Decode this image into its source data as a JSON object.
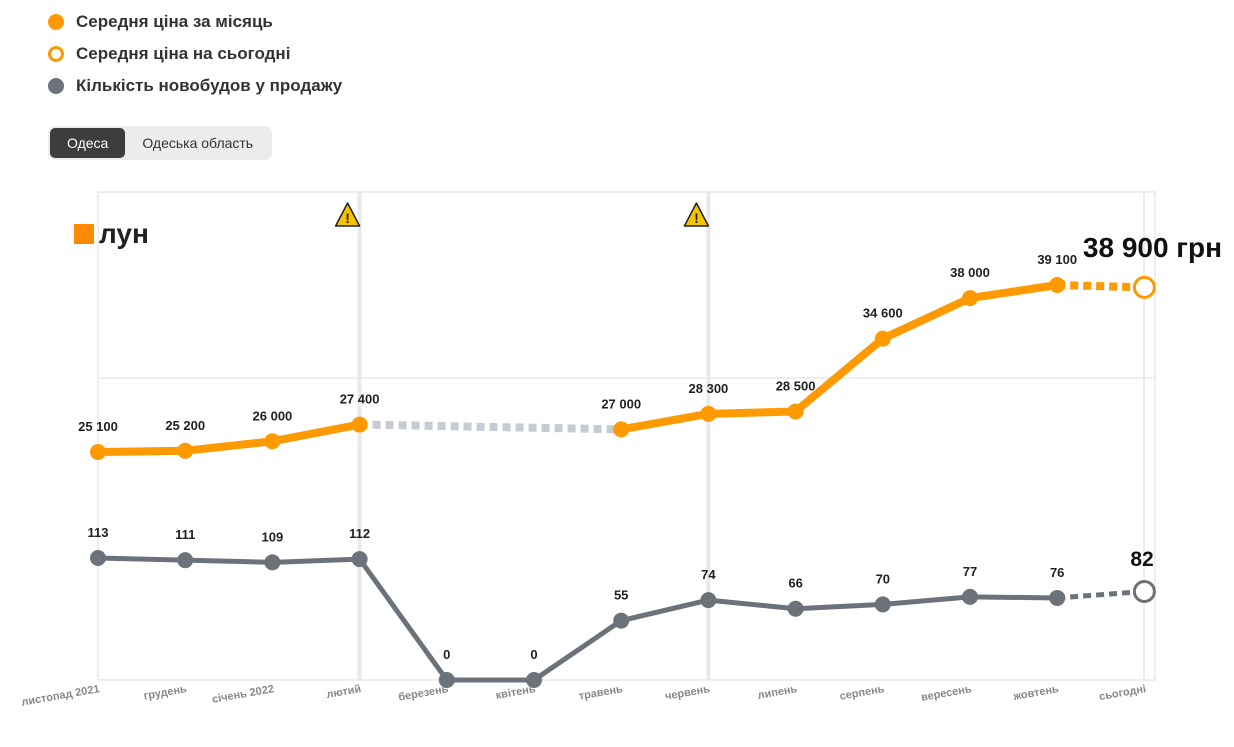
{
  "legend": {
    "items": [
      {
        "label": "Середня ціна за місяць",
        "style": "filled-orange"
      },
      {
        "label": "Середня ціна на сьогодні",
        "style": "hollow-orange"
      },
      {
        "label": "Кількість новобудов у продажу",
        "style": "filled-gray"
      }
    ]
  },
  "tabs": {
    "items": [
      {
        "label": "Одеса",
        "active": true
      },
      {
        "label": "Одеська область",
        "active": false
      }
    ]
  },
  "logo": {
    "text": "лун",
    "icon": "lun-logo-square-icon"
  },
  "colors": {
    "price": "#ff9900",
    "count": "#6b727a",
    "gap": "#c5ccd3",
    "warning": "#f5c400"
  },
  "chart_data": {
    "type": "line",
    "categories": [
      "листопад 2021",
      "грудень",
      "січень 2022",
      "лютий",
      "березень",
      "квітень",
      "травень",
      "червень",
      "липень",
      "серпень",
      "вересень",
      "жовтень",
      "сьогодні"
    ],
    "series": [
      {
        "name": "Середня ціна за місяць",
        "values": [
          25100,
          25200,
          26000,
          27400,
          null,
          null,
          27000,
          28300,
          28500,
          34600,
          38000,
          39100,
          38900
        ],
        "labels": [
          "25 100",
          "25 200",
          "26 000",
          "27 400",
          "",
          "",
          "27 000",
          "28 300",
          "28 500",
          "34 600",
          "38 000",
          "39 100",
          ""
        ]
      },
      {
        "name": "Кількість новобудов у продажу",
        "values": [
          113,
          111,
          109,
          112,
          0,
          0,
          55,
          74,
          66,
          70,
          77,
          76,
          82
        ],
        "labels": [
          "113",
          "111",
          "109",
          "112",
          "0",
          "0",
          "55",
          "74",
          "66",
          "70",
          "77",
          "76",
          ""
        ]
      }
    ],
    "today_price_label": "38 900 грн",
    "today_count_label": "82",
    "warnings_at": [
      "лютий",
      "червень"
    ],
    "grid": true
  }
}
